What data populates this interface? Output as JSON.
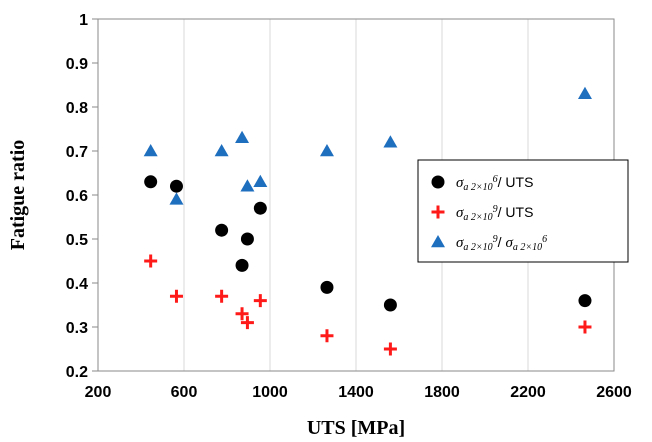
{
  "chart_data": {
    "type": "scatter",
    "xlabel": "UTS [MPa]",
    "ylabel": "Fatigue ratio",
    "xlim": [
      200,
      2600
    ],
    "ylim": [
      0.2,
      1.0
    ],
    "x_ticks": [
      200,
      600,
      1000,
      1400,
      1800,
      2200,
      2600
    ],
    "y_ticks": [
      0.2,
      0.3,
      0.4,
      0.5,
      0.6,
      0.7,
      0.8,
      0.9,
      1.0
    ],
    "x_tick_labels": [
      "200",
      "600",
      "1000",
      "1400",
      "1800",
      "2200",
      "2600"
    ],
    "y_tick_labels": [
      "0.2",
      "0.3",
      "0.4",
      "0.5",
      "0.6",
      "0.7",
      "0.8",
      "0.9",
      "1"
    ],
    "grid": {
      "x": true,
      "y": false
    },
    "legend_position": "center-right",
    "series": [
      {
        "name": "σa 2×10^6/ UTS",
        "legend": {
          "sym": "σ",
          "sub": "a 2×10",
          "sup": "6",
          "rest": "/ UTS"
        },
        "marker": "circle",
        "color": "#000000",
        "points": [
          [
            445,
            0.63
          ],
          [
            565,
            0.62
          ],
          [
            775,
            0.52
          ],
          [
            870,
            0.44
          ],
          [
            895,
            0.5
          ],
          [
            955,
            0.57
          ],
          [
            1265,
            0.39
          ],
          [
            1560,
            0.35
          ],
          [
            2465,
            0.36
          ]
        ]
      },
      {
        "name": "σa 2×10^9/ UTS",
        "legend": {
          "sym": "σ",
          "sub": "a 2×10",
          "sup": "9",
          "rest": "/ UTS"
        },
        "marker": "plus",
        "color": "#ff1a1a",
        "points": [
          [
            445,
            0.45
          ],
          [
            565,
            0.37
          ],
          [
            775,
            0.37
          ],
          [
            870,
            0.33
          ],
          [
            895,
            0.31
          ],
          [
            955,
            0.36
          ],
          [
            1265,
            0.28
          ],
          [
            1560,
            0.25
          ],
          [
            2465,
            0.3
          ]
        ]
      },
      {
        "name": "σa 2×10^9/ σa 2×10^6",
        "legend": {
          "sym": "σ",
          "sub": "a 2×10",
          "sup": "9",
          "rest": "/ ",
          "sym2": "σ",
          "sub2": "a 2×10",
          "sup2": "6"
        },
        "marker": "triangle",
        "color": "#1f6fbf",
        "points": [
          [
            445,
            0.7
          ],
          [
            565,
            0.59
          ],
          [
            775,
            0.7
          ],
          [
            870,
            0.73
          ],
          [
            895,
            0.62
          ],
          [
            955,
            0.63
          ],
          [
            1265,
            0.7
          ],
          [
            1560,
            0.72
          ],
          [
            2465,
            0.83
          ]
        ]
      }
    ]
  }
}
